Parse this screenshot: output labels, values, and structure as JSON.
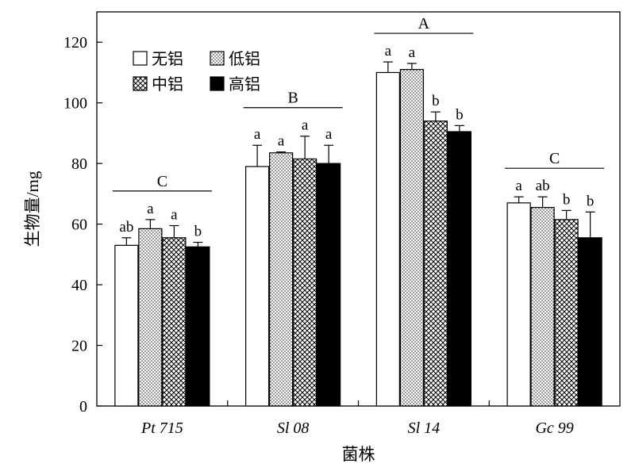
{
  "chart_data": {
    "type": "bar",
    "title": "",
    "xlabel": "菌株",
    "ylabel": "生物量/mg",
    "ylim": [
      0,
      130
    ],
    "yticks": [
      0,
      20,
      40,
      60,
      80,
      100,
      120
    ],
    "grid": false,
    "legend_position": "top-left",
    "categories": [
      "Pt 715",
      "Sl 08",
      "Sl 14",
      "Gc 99"
    ],
    "group_letters": [
      "C",
      "B",
      "A",
      "C"
    ],
    "series": [
      {
        "name": "无铝",
        "pattern": "none",
        "values": [
          53,
          79,
          110,
          67
        ],
        "errors": [
          2.5,
          7,
          3.5,
          2
        ],
        "letters": [
          "ab",
          "a",
          "a",
          "a"
        ]
      },
      {
        "name": "低铝",
        "pattern": "dots",
        "values": [
          58.5,
          83.5,
          111,
          65.5
        ],
        "errors": [
          3,
          0.3,
          2,
          3.5
        ],
        "letters": [
          "a",
          "a",
          "a",
          "ab"
        ]
      },
      {
        "name": "中铝",
        "pattern": "crosshatch",
        "values": [
          55.5,
          81.5,
          94,
          61.5
        ],
        "errors": [
          4,
          7.5,
          3,
          3
        ],
        "letters": [
          "a",
          "a",
          "b",
          "b"
        ]
      },
      {
        "name": "高铝",
        "pattern": "solid",
        "values": [
          52.5,
          80,
          90.5,
          55.5
        ],
        "errors": [
          1.5,
          6,
          2,
          8.5
        ],
        "letters": [
          "b",
          "a",
          "b",
          "b"
        ]
      }
    ]
  }
}
